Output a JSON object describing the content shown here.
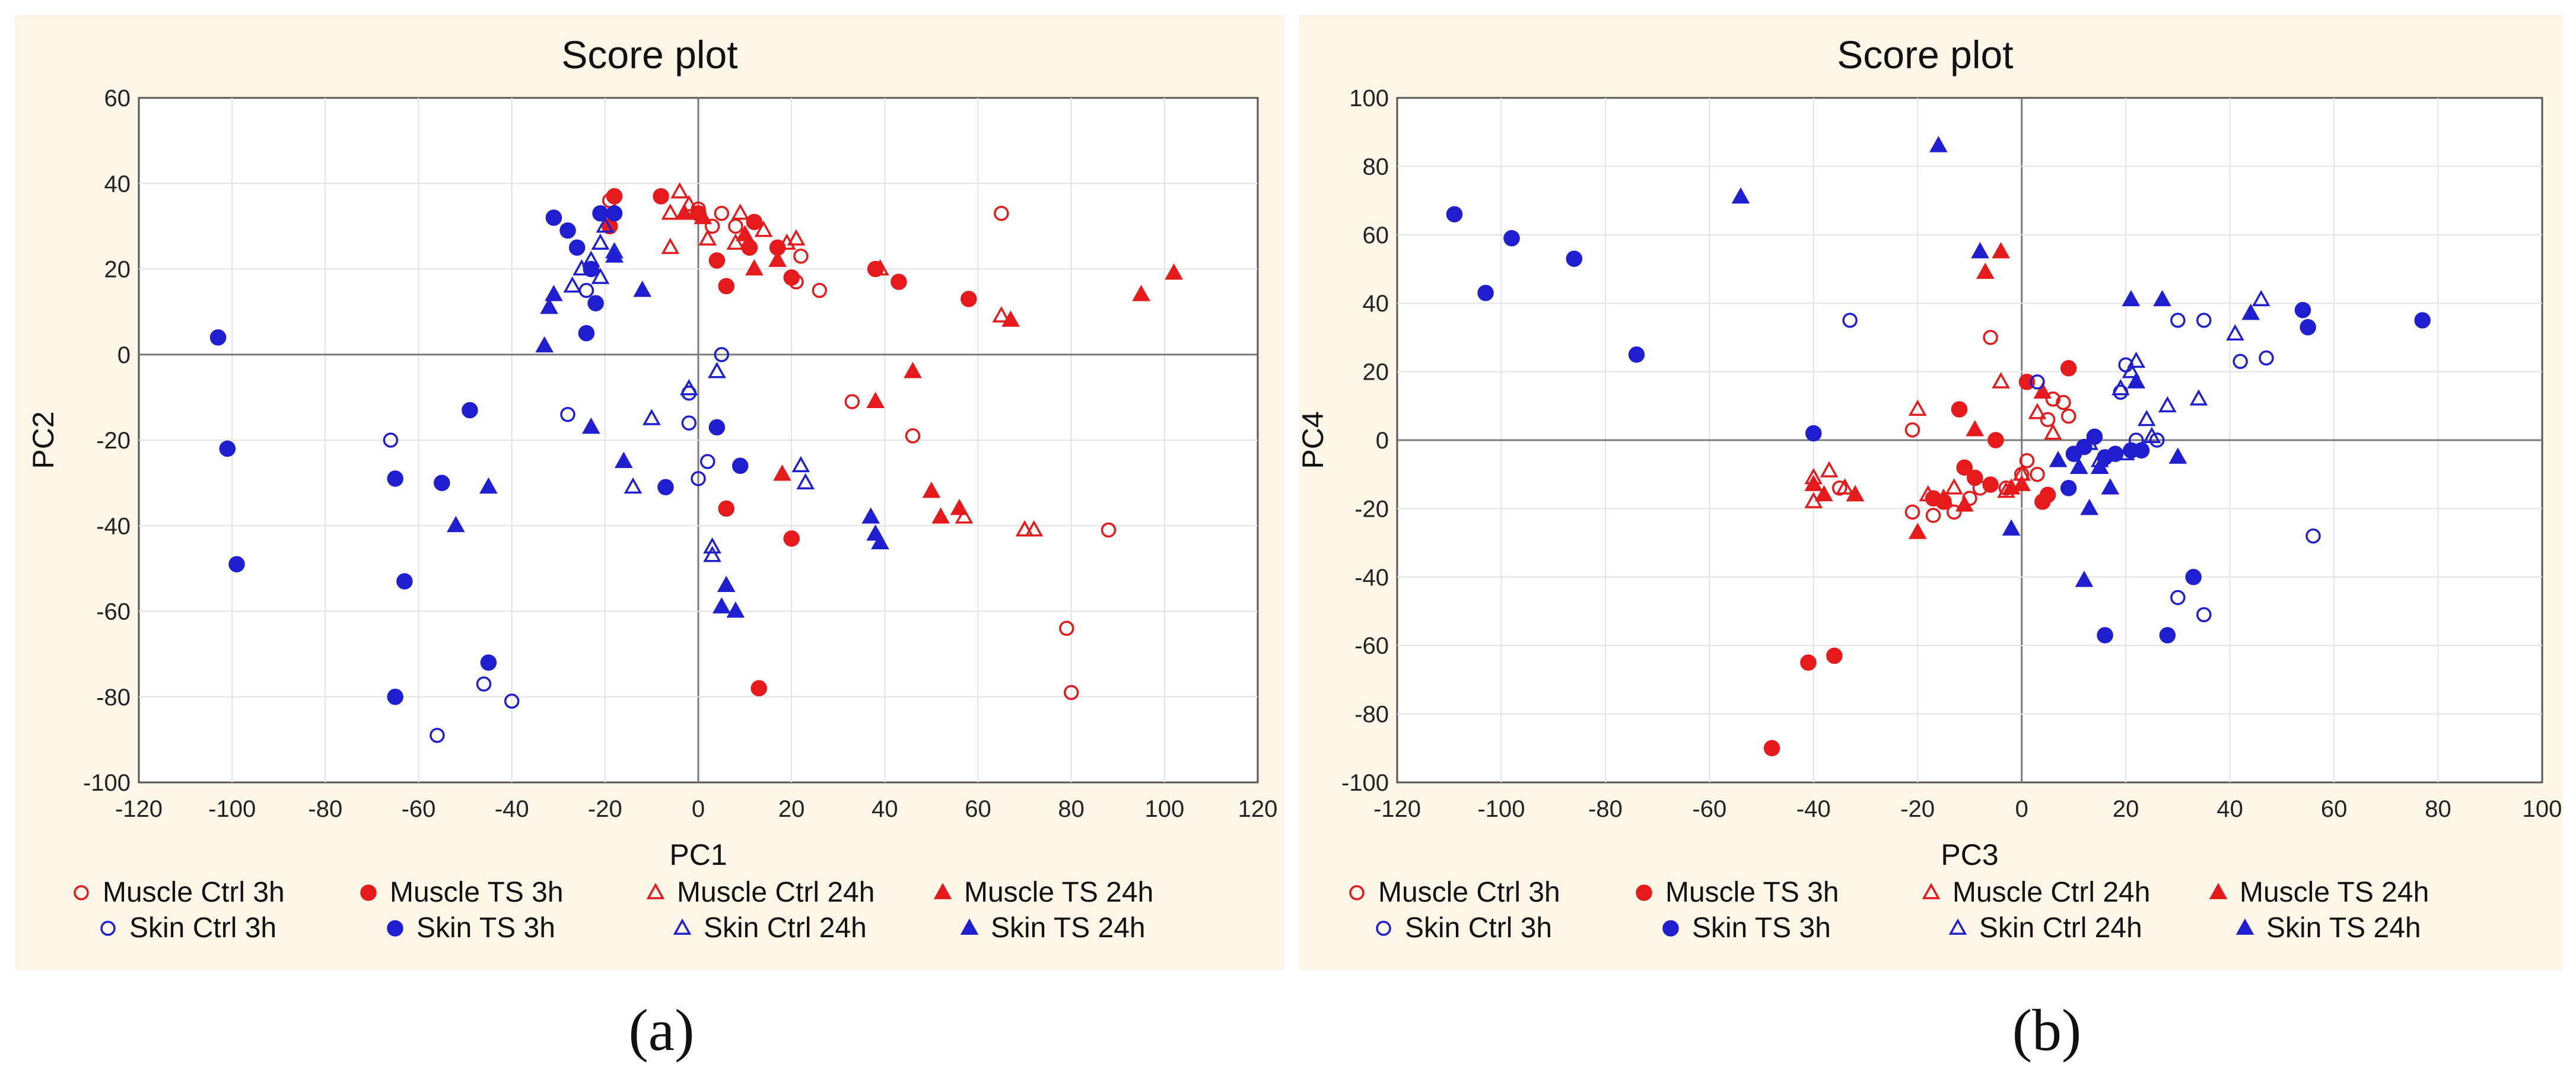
{
  "chart_data": [
    {
      "type": "scatter",
      "panel_label": "(a)",
      "title": "Score plot",
      "xlabel": "PC1",
      "ylabel": "PC2",
      "xlim": [
        -120,
        120
      ],
      "ylim": [
        -100,
        60
      ],
      "xticks": [
        -120,
        -100,
        -80,
        -60,
        -40,
        -20,
        0,
        20,
        40,
        60,
        80,
        100,
        120
      ],
      "yticks": [
        -100,
        -80,
        -60,
        -40,
        -20,
        0,
        20,
        40,
        60
      ],
      "legend": [
        "Muscle Ctrl 3h",
        "Muscle TS 3h",
        "Muscle Ctrl 24h",
        "Muscle TS 24h",
        "Skin Ctrl 3h",
        "Skin TS 3h",
        "Skin Ctrl 24h",
        "Skin TS 24h"
      ],
      "series": [
        {
          "name": "Muscle Ctrl 3h",
          "points": [
            [
              -19,
              36
            ],
            [
              0,
              34
            ],
            [
              3,
              30
            ],
            [
              5,
              33
            ],
            [
              8,
              30
            ],
            [
              22,
              23
            ],
            [
              21,
              17
            ],
            [
              26,
              15
            ],
            [
              33,
              -11
            ],
            [
              46,
              -19
            ],
            [
              65,
              33
            ],
            [
              79,
              -64
            ],
            [
              80,
              -79
            ],
            [
              88,
              -41
            ]
          ]
        },
        {
          "name": "Muscle TS 3h",
          "points": [
            [
              -18,
              37
            ],
            [
              -19,
              30
            ],
            [
              -8,
              37
            ],
            [
              0,
              33
            ],
            [
              4,
              22
            ],
            [
              6,
              16
            ],
            [
              11,
              25
            ],
            [
              12,
              31
            ],
            [
              17,
              25
            ],
            [
              20,
              18
            ],
            [
              38,
              20
            ],
            [
              43,
              17
            ],
            [
              58,
              13
            ],
            [
              6,
              -36
            ],
            [
              20,
              -43
            ],
            [
              13,
              -78
            ]
          ]
        },
        {
          "name": "Muscle Ctrl 24h",
          "points": [
            [
              -6,
              33
            ],
            [
              -4,
              38
            ],
            [
              -2,
              35
            ],
            [
              -6,
              25
            ],
            [
              2,
              27
            ],
            [
              8,
              26
            ],
            [
              14,
              29
            ],
            [
              19,
              26
            ],
            [
              21,
              27
            ],
            [
              39,
              20
            ],
            [
              65,
              9
            ],
            [
              57,
              -38
            ],
            [
              70,
              -41
            ],
            [
              72,
              -41
            ],
            [
              9,
              33
            ]
          ]
        },
        {
          "name": "Muscle TS 24h",
          "points": [
            [
              -3,
              33
            ],
            [
              1,
              32
            ],
            [
              10,
              28
            ],
            [
              12,
              20
            ],
            [
              17,
              22
            ],
            [
              67,
              8
            ],
            [
              95,
              14
            ],
            [
              102,
              19
            ],
            [
              38,
              -11
            ],
            [
              46,
              -4
            ],
            [
              50,
              -32
            ],
            [
              52,
              -38
            ],
            [
              56,
              -36
            ],
            [
              18,
              -28
            ]
          ]
        },
        {
          "name": "Skin Ctrl 3h",
          "points": [
            [
              -66,
              -20
            ],
            [
              -28,
              -14
            ],
            [
              -24,
              15
            ],
            [
              -2,
              -9
            ],
            [
              -2,
              -16
            ],
            [
              0,
              -29
            ],
            [
              2,
              -25
            ],
            [
              5,
              0
            ],
            [
              -56,
              -89
            ],
            [
              -46,
              -77
            ],
            [
              -40,
              -81
            ]
          ]
        },
        {
          "name": "Skin TS 3h",
          "points": [
            [
              -103,
              4
            ],
            [
              -101,
              -22
            ],
            [
              -99,
              -49
            ],
            [
              -65,
              -29
            ],
            [
              -63,
              -53
            ],
            [
              -65,
              -80
            ],
            [
              -55,
              -30
            ],
            [
              -49,
              -13
            ],
            [
              -45,
              -72
            ],
            [
              -31,
              32
            ],
            [
              -28,
              29
            ],
            [
              -26,
              25
            ],
            [
              -23,
              20
            ],
            [
              -22,
              12
            ],
            [
              -21,
              33
            ],
            [
              -18,
              33
            ],
            [
              -24,
              5
            ],
            [
              -7,
              -31
            ],
            [
              4,
              -17
            ],
            [
              9,
              -26
            ]
          ]
        },
        {
          "name": "Skin Ctrl 24h",
          "points": [
            [
              -27,
              16
            ],
            [
              -25,
              20
            ],
            [
              -23,
              22
            ],
            [
              -21,
              26
            ],
            [
              -21,
              18
            ],
            [
              -18,
              24
            ],
            [
              -20,
              30
            ],
            [
              -14,
              -31
            ],
            [
              -10,
              -15
            ],
            [
              -2,
              -8
            ],
            [
              4,
              -4
            ],
            [
              3,
              -45
            ],
            [
              3,
              -47
            ],
            [
              22,
              -26
            ],
            [
              23,
              -30
            ]
          ]
        },
        {
          "name": "Skin TS 24h",
          "points": [
            [
              -33,
              2
            ],
            [
              -32,
              11
            ],
            [
              -31,
              14
            ],
            [
              -23,
              -17
            ],
            [
              -18,
              23
            ],
            [
              -12,
              15
            ],
            [
              -16,
              -25
            ],
            [
              -45,
              -31
            ],
            [
              -52,
              -40
            ],
            [
              6,
              -54
            ],
            [
              5,
              -59
            ],
            [
              8,
              -60
            ],
            [
              37,
              -38
            ],
            [
              38,
              -42
            ],
            [
              39,
              -44
            ]
          ]
        }
      ]
    },
    {
      "type": "scatter",
      "panel_label": "(b)",
      "title": "Score plot",
      "xlabel": "PC3",
      "ylabel": "PC4",
      "xlim": [
        -120,
        100
      ],
      "ylim": [
        -100,
        100
      ],
      "xticks": [
        -120,
        -100,
        -80,
        -60,
        -40,
        -20,
        0,
        20,
        40,
        60,
        80,
        100
      ],
      "yticks": [
        -100,
        -80,
        -60,
        -40,
        -20,
        0,
        20,
        40,
        60,
        80,
        100
      ],
      "legend": [
        "Muscle Ctrl 3h",
        "Muscle TS 3h",
        "Muscle Ctrl 24h",
        "Muscle TS 24h",
        "Skin Ctrl 3h",
        "Skin TS 3h",
        "Skin Ctrl 24h",
        "Skin TS 24h"
      ],
      "series": [
        {
          "name": "Muscle Ctrl 3h",
          "points": [
            [
              -6,
              30
            ],
            [
              -21,
              3
            ],
            [
              -21,
              -21
            ],
            [
              -17,
              -22
            ],
            [
              -13,
              -21
            ],
            [
              -35,
              -14
            ],
            [
              -10,
              -17
            ],
            [
              -8,
              -14
            ],
            [
              -3,
              -14
            ],
            [
              0,
              -10
            ],
            [
              1,
              -6
            ],
            [
              3,
              -10
            ],
            [
              6,
              12
            ],
            [
              8,
              11
            ],
            [
              9,
              7
            ],
            [
              5,
              6
            ]
          ]
        },
        {
          "name": "Muscle TS 3h",
          "points": [
            [
              -48,
              -90
            ],
            [
              -41,
              -65
            ],
            [
              -36,
              -63
            ],
            [
              -12,
              9
            ],
            [
              -11,
              -8
            ],
            [
              -17,
              -17
            ],
            [
              -15,
              -18
            ],
            [
              -9,
              -11
            ],
            [
              -6,
              -13
            ],
            [
              -5,
              0
            ],
            [
              1,
              17
            ],
            [
              4,
              -18
            ],
            [
              9,
              21
            ],
            [
              5,
              -16
            ]
          ]
        },
        {
          "name": "Muscle Ctrl 24h",
          "points": [
            [
              -20,
              9
            ],
            [
              -40,
              -11
            ],
            [
              -40,
              -18
            ],
            [
              -37,
              -9
            ],
            [
              -34,
              -14
            ],
            [
              -32,
              -16
            ],
            [
              -18,
              -16
            ],
            [
              -13,
              -14
            ],
            [
              -4,
              17
            ],
            [
              -3,
              -15
            ],
            [
              0,
              -10
            ],
            [
              3,
              8
            ],
            [
              6,
              2
            ]
          ]
        },
        {
          "name": "Muscle TS 24h",
          "points": [
            [
              -7,
              49
            ],
            [
              -4,
              55
            ],
            [
              -40,
              -13
            ],
            [
              -38,
              -16
            ],
            [
              -32,
              -16
            ],
            [
              -20,
              -27
            ],
            [
              -15,
              -17
            ],
            [
              -11,
              -19
            ],
            [
              -2,
              -14
            ],
            [
              0,
              -13
            ],
            [
              4,
              14
            ],
            [
              -9,
              3
            ]
          ]
        },
        {
          "name": "Skin Ctrl 3h",
          "points": [
            [
              -33,
              35
            ],
            [
              3,
              17
            ],
            [
              14,
              1
            ],
            [
              19,
              14
            ],
            [
              20,
              22
            ],
            [
              22,
              0
            ],
            [
              26,
              0
            ],
            [
              30,
              35
            ],
            [
              35,
              35
            ],
            [
              42,
              23
            ],
            [
              47,
              24
            ],
            [
              56,
              -28
            ],
            [
              30,
              -46
            ],
            [
              35,
              -51
            ]
          ]
        },
        {
          "name": "Skin TS 3h",
          "points": [
            [
              -109,
              66
            ],
            [
              -103,
              43
            ],
            [
              -98,
              59
            ],
            [
              -86,
              53
            ],
            [
              -74,
              25
            ],
            [
              -40,
              2
            ],
            [
              10,
              -4
            ],
            [
              12,
              -2
            ],
            [
              14,
              1
            ],
            [
              16,
              -5
            ],
            [
              18,
              -4
            ],
            [
              21,
              -3
            ],
            [
              23,
              -3
            ],
            [
              9,
              -14
            ],
            [
              16,
              -57
            ],
            [
              28,
              -57
            ],
            [
              33,
              -40
            ],
            [
              54,
              38
            ],
            [
              55,
              33
            ],
            [
              77,
              35
            ]
          ]
        },
        {
          "name": "Skin Ctrl 24h",
          "points": [
            [
              19,
              15
            ],
            [
              21,
              20
            ],
            [
              22,
              23
            ],
            [
              24,
              6
            ],
            [
              28,
              10
            ],
            [
              34,
              12
            ],
            [
              41,
              31
            ],
            [
              46,
              41
            ],
            [
              15,
              -6
            ],
            [
              20,
              -4
            ],
            [
              25,
              1
            ],
            [
              13,
              -1
            ]
          ]
        },
        {
          "name": "Skin TS 24h",
          "points": [
            [
              -54,
              71
            ],
            [
              -16,
              86
            ],
            [
              -8,
              55
            ],
            [
              -2,
              -26
            ],
            [
              7,
              -6
            ],
            [
              11,
              -8
            ],
            [
              13,
              -20
            ],
            [
              15,
              -8
            ],
            [
              12,
              -41
            ],
            [
              17,
              -14
            ],
            [
              21,
              41
            ],
            [
              22,
              17
            ],
            [
              27,
              41
            ],
            [
              44,
              37
            ],
            [
              30,
              -5
            ]
          ]
        }
      ]
    }
  ],
  "marker_colors": {
    "muscle": "#e41a1c",
    "skin": "#1f1fd0"
  }
}
